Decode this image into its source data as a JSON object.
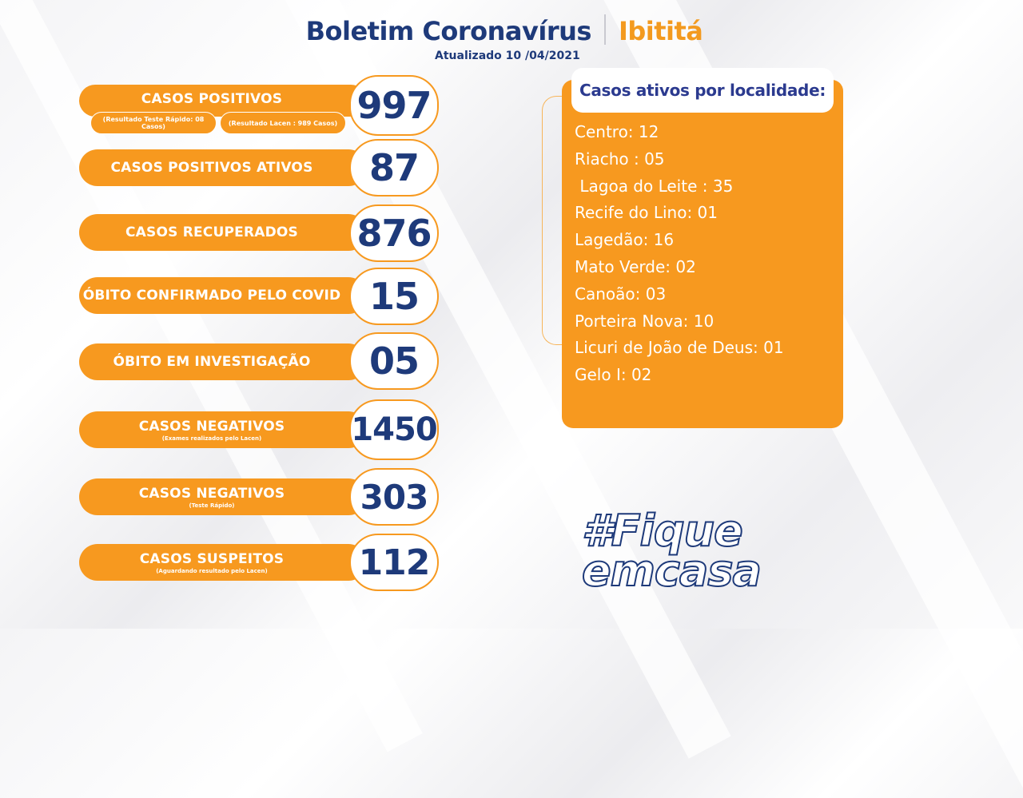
{
  "header": {
    "title": "Boletim Coronavírus",
    "city": "Ibititá",
    "updated": "Atualizado 10 /04/2021"
  },
  "stats": [
    {
      "label": "CASOS  POSITIVOS",
      "value": "997",
      "sub": "",
      "mini_left": "(Resultado Teste Rápido: 08 Casos)",
      "mini_right": "(Resultado Lacen : 989 Casos)"
    },
    {
      "label": "CASOS POSITIVOS ATIVOS",
      "value": "87",
      "sub": ""
    },
    {
      "label": "CASOS RECUPERADOS",
      "value": "876",
      "sub": ""
    },
    {
      "label": "ÓBITO CONFIRMADO PELO COVID",
      "value": "15",
      "sub": ""
    },
    {
      "label": "ÓBITO EM INVESTIGAÇÃO",
      "value": "05",
      "sub": ""
    },
    {
      "label": "CASOS NEGATIVOS",
      "value": "1450",
      "sub": "(Exames realizados pelo Lacen)"
    },
    {
      "label": "CASOS NEGATIVOS",
      "value": "303",
      "sub": "(Teste Rápido)"
    },
    {
      "label": "CASOS SUSPEITOS",
      "value": "112",
      "sub": "(Aguardando resultado pelo Lacen)"
    }
  ],
  "localities": {
    "title": "Casos ativos por localidade:",
    "items": [
      "Centro: 12",
      "Riacho : 05",
      " Lagoa do Leite : 35",
      "Recife do Lino: 01",
      "Lagedão: 16",
      "Mato Verde: 02",
      "Canoão: 03",
      "Porteira Nova: 10",
      "Licuri de João de Deus: 01",
      "Gelo I: 02"
    ]
  },
  "hashtag": {
    "line1": "#Fique",
    "line2": "emcasa"
  },
  "colors": {
    "orange": "#f7991f",
    "navy": "#1e3a7a",
    "white": "#ffffff"
  }
}
